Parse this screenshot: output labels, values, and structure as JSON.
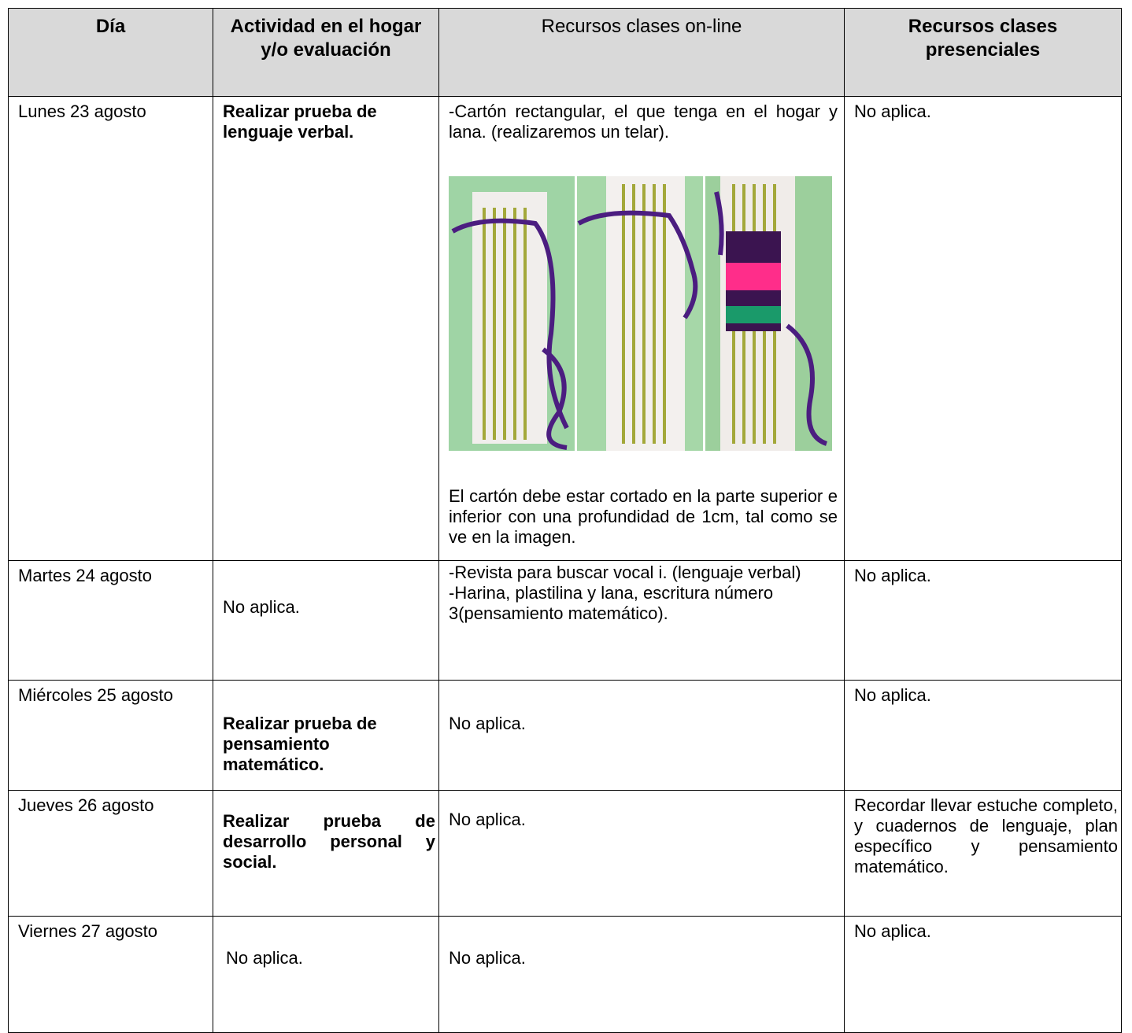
{
  "table": {
    "header": [
      "Día",
      "Actividad en el hogar y/o evaluación",
      "Recursos clases on-line",
      "Recursos clases presenciales"
    ],
    "rows": [
      [
        "Lunes 23 agosto",
        "Realizar prueba de lenguaje verbal.",
        [
          "-Cartón rectangular, el que tenga en el hogar y lana. (realizaremos un telar).",
          "El cartón debe estar cortado en la parte superior e inferior con una profundidad de 1cm, tal como se ve en la imagen."
        ],
        "No aplica."
      ],
      [
        "Martes 24 agosto",
        "No aplica.",
        [
          "-Revista para buscar vocal i. (lenguaje verbal)",
          "-Harina, plastilina y lana, escritura número 3(pensamiento matemático)."
        ],
        "No aplica."
      ],
      [
        "Miércoles 25 agosto",
        "Realizar prueba de pensamiento matemático.",
        "No aplica.",
        "No aplica."
      ],
      [
        "Jueves 26 agosto",
        "Realizar prueba de desarrollo personal y social.",
        "No aplica.",
        "Recordar llevar estuche completo, y cuadernos de lenguaje, plan específico y pensamiento matemático."
      ],
      [
        "Viernes 27 agosto",
        "No aplica.",
        "No aplica.",
        "No aplica."
      ]
    ]
  }
}
